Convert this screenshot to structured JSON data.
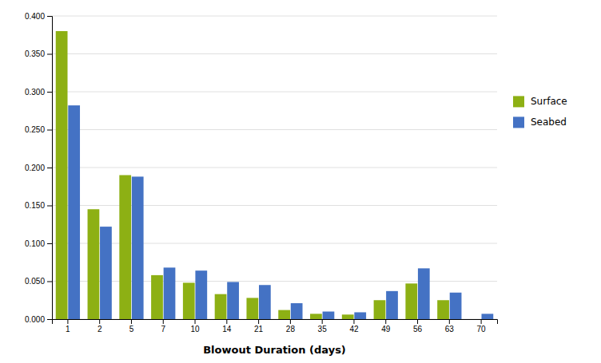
{
  "chart_data": {
    "type": "bar",
    "categories": [
      "1",
      "2",
      "5",
      "7",
      "10",
      "14",
      "21",
      "28",
      "35",
      "42",
      "49",
      "56",
      "63",
      "70"
    ],
    "series": [
      {
        "name": "Surface",
        "color": "#8DB014",
        "values": [
          0.38,
          0.145,
          0.19,
          0.058,
          0.048,
          0.033,
          0.028,
          0.012,
          0.007,
          0.006,
          0.025,
          0.047,
          0.025,
          0
        ]
      },
      {
        "name": "Seabed",
        "color": "#4472C4",
        "values": [
          0.282,
          0.122,
          0.188,
          0.068,
          0.064,
          0.049,
          0.045,
          0.021,
          0.01,
          0.009,
          0.037,
          0.067,
          0.035,
          0.007
        ]
      }
    ],
    "xlabel": "Blowout Duration (days)",
    "ylim": [
      0,
      0.4
    ],
    "yticks": [
      {
        "value": 0,
        "label": "0.000"
      },
      {
        "value": 0.05,
        "label": "0.050"
      },
      {
        "value": 0.1,
        "label": "0.100"
      },
      {
        "value": 0.15,
        "label": "0.150"
      },
      {
        "value": 0.2,
        "label": "0.200"
      },
      {
        "value": 0.25,
        "label": "0.250"
      },
      {
        "value": 0.3,
        "label": "0.300"
      },
      {
        "value": 0.35,
        "label": "0.350"
      },
      {
        "value": 0.4,
        "label": "0.400"
      }
    ],
    "grid": true,
    "legend": "right"
  }
}
